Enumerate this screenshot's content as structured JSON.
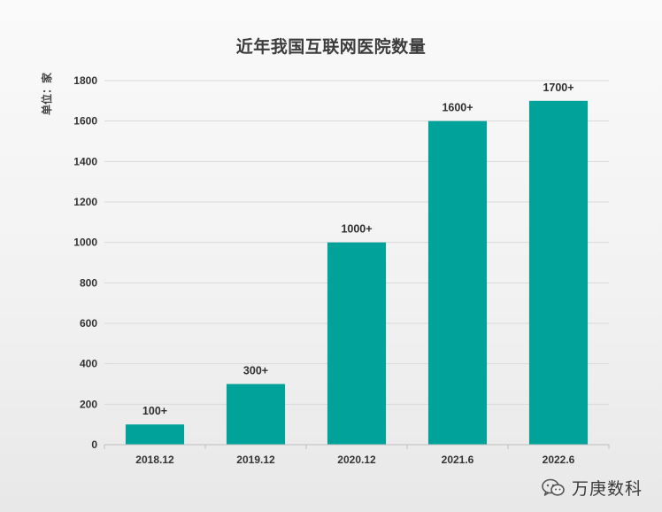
{
  "chart_data": {
    "type": "bar",
    "title": "近年我国互联网医院数量",
    "ylabel": "单位：家",
    "xlabel": "",
    "categories": [
      "2018.12",
      "2019.12",
      "2020.12",
      "2021.6",
      "2022.6"
    ],
    "values": [
      100,
      300,
      1000,
      1600,
      1700
    ],
    "data_labels": [
      "100+",
      "300+",
      "1000+",
      "1600+",
      "1700+"
    ],
    "ylim": [
      0,
      1800
    ],
    "yticks": [
      0,
      200,
      400,
      600,
      800,
      1000,
      1200,
      1400,
      1600,
      1800
    ],
    "grid": true,
    "legend": "none",
    "bar_color": "#00a29a"
  },
  "watermark": {
    "text": "万庚数科",
    "icon": "wechat-icon"
  },
  "colors": {
    "grid": "#d9d9d9",
    "axis": "#bfbfbf",
    "text": "#333333"
  }
}
